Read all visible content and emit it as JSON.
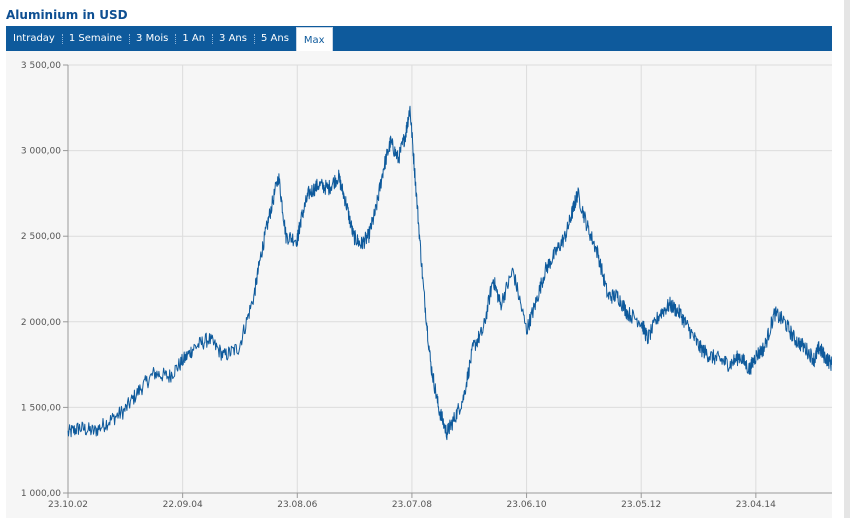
{
  "page": {
    "title": "Aluminium in USD"
  },
  "tabs": [
    {
      "label": "Intraday",
      "active": false
    },
    {
      "label": "1 Semaine",
      "active": false
    },
    {
      "label": "3 Mois",
      "active": false
    },
    {
      "label": "1 An",
      "active": false
    },
    {
      "label": "3 Ans",
      "active": false
    },
    {
      "label": "5 Ans",
      "active": false
    },
    {
      "label": "Max",
      "active": true
    }
  ],
  "colors": {
    "line": "#0e5a9c",
    "tabbar": "#0e5a9c",
    "title": "#0e4f92",
    "grid": "#dcdcdc",
    "plot_bg": "#f6f6f6"
  },
  "chart_data": {
    "type": "line",
    "title": "Aluminium in USD",
    "xlabel": "",
    "ylabel": "",
    "grid": true,
    "legend": "none",
    "ylim": [
      1000,
      3500
    ],
    "xlim": [
      "2002-10-23",
      "2015-08-01"
    ],
    "yticks": [
      {
        "value": 1000,
        "label": "1 000,00"
      },
      {
        "value": 1500,
        "label": "1 500,00"
      },
      {
        "value": 2000,
        "label": "2 000,00"
      },
      {
        "value": 2500,
        "label": "2 500,00"
      },
      {
        "value": 3000,
        "label": "3 000,00"
      },
      {
        "value": 3500,
        "label": "3 500,00"
      }
    ],
    "xticks": [
      {
        "date": "2002-10-23",
        "label": "23.10.02"
      },
      {
        "date": "2004-09-22",
        "label": "22.09.04"
      },
      {
        "date": "2006-08-23",
        "label": "23.08.06"
      },
      {
        "date": "2008-07-23",
        "label": "23.07.08"
      },
      {
        "date": "2010-06-23",
        "label": "23.06.10"
      },
      {
        "date": "2012-05-23",
        "label": "23.05.12"
      },
      {
        "date": "2014-04-23",
        "label": "23.04.14"
      }
    ],
    "series": [
      {
        "x": [
          "2002-10-23",
          "2003-01-01",
          "2003-04-01",
          "2003-07-01",
          "2003-10-01",
          "2004-01-01",
          "2004-04-01",
          "2004-07-01",
          "2004-09-22",
          "2004-12-01",
          "2005-03-01",
          "2005-06-01",
          "2005-09-01",
          "2005-12-01",
          "2006-01-15",
          "2006-03-01",
          "2006-05-01",
          "2006-06-15",
          "2006-08-23",
          "2006-09-15",
          "2006-11-01",
          "2007-01-01",
          "2007-03-01",
          "2007-05-01",
          "2007-06-15",
          "2007-08-01",
          "2007-09-15",
          "2007-11-01",
          "2007-12-15",
          "2008-02-01",
          "2008-03-15",
          "2008-05-01",
          "2008-06-15",
          "2008-07-11",
          "2008-08-15",
          "2008-10-01",
          "2008-11-15",
          "2009-01-01",
          "2009-02-20",
          "2009-04-01",
          "2009-06-01",
          "2009-08-01",
          "2009-10-01",
          "2009-12-01",
          "2010-01-15",
          "2010-04-01",
          "2010-06-23",
          "2010-08-15",
          "2010-10-15",
          "2010-12-15",
          "2011-02-15",
          "2011-04-01",
          "2011-05-01",
          "2011-07-01",
          "2011-09-01",
          "2011-11-01",
          "2012-01-01",
          "2012-03-01",
          "2012-05-23",
          "2012-07-01",
          "2012-09-15",
          "2012-11-15",
          "2013-01-15",
          "2013-03-15",
          "2013-05-15",
          "2013-07-15",
          "2013-09-15",
          "2013-11-15",
          "2014-01-15",
          "2014-03-15",
          "2014-04-23",
          "2014-06-15",
          "2014-08-15",
          "2014-10-15",
          "2014-12-15",
          "2015-02-15",
          "2015-04-15",
          "2015-05-15",
          "2015-06-15",
          "2015-08-01"
        ],
        "y": [
          1350,
          1380,
          1360,
          1420,
          1480,
          1600,
          1700,
          1680,
          1770,
          1850,
          1900,
          1800,
          1850,
          2150,
          2400,
          2600,
          2850,
          2500,
          2480,
          2600,
          2750,
          2800,
          2780,
          2850,
          2700,
          2500,
          2450,
          2500,
          2650,
          2900,
          3050,
          2950,
          3100,
          3250,
          2800,
          2200,
          1750,
          1500,
          1350,
          1420,
          1550,
          1850,
          1950,
          2250,
          2100,
          2300,
          1950,
          2100,
          2300,
          2400,
          2500,
          2650,
          2750,
          2550,
          2400,
          2150,
          2150,
          2050,
          2000,
          1900,
          2050,
          2100,
          2050,
          1950,
          1850,
          1800,
          1780,
          1750,
          1800,
          1720,
          1800,
          1850,
          2050,
          2000,
          1900,
          1850,
          1780,
          1850,
          1800,
          1750
        ]
      }
    ]
  }
}
